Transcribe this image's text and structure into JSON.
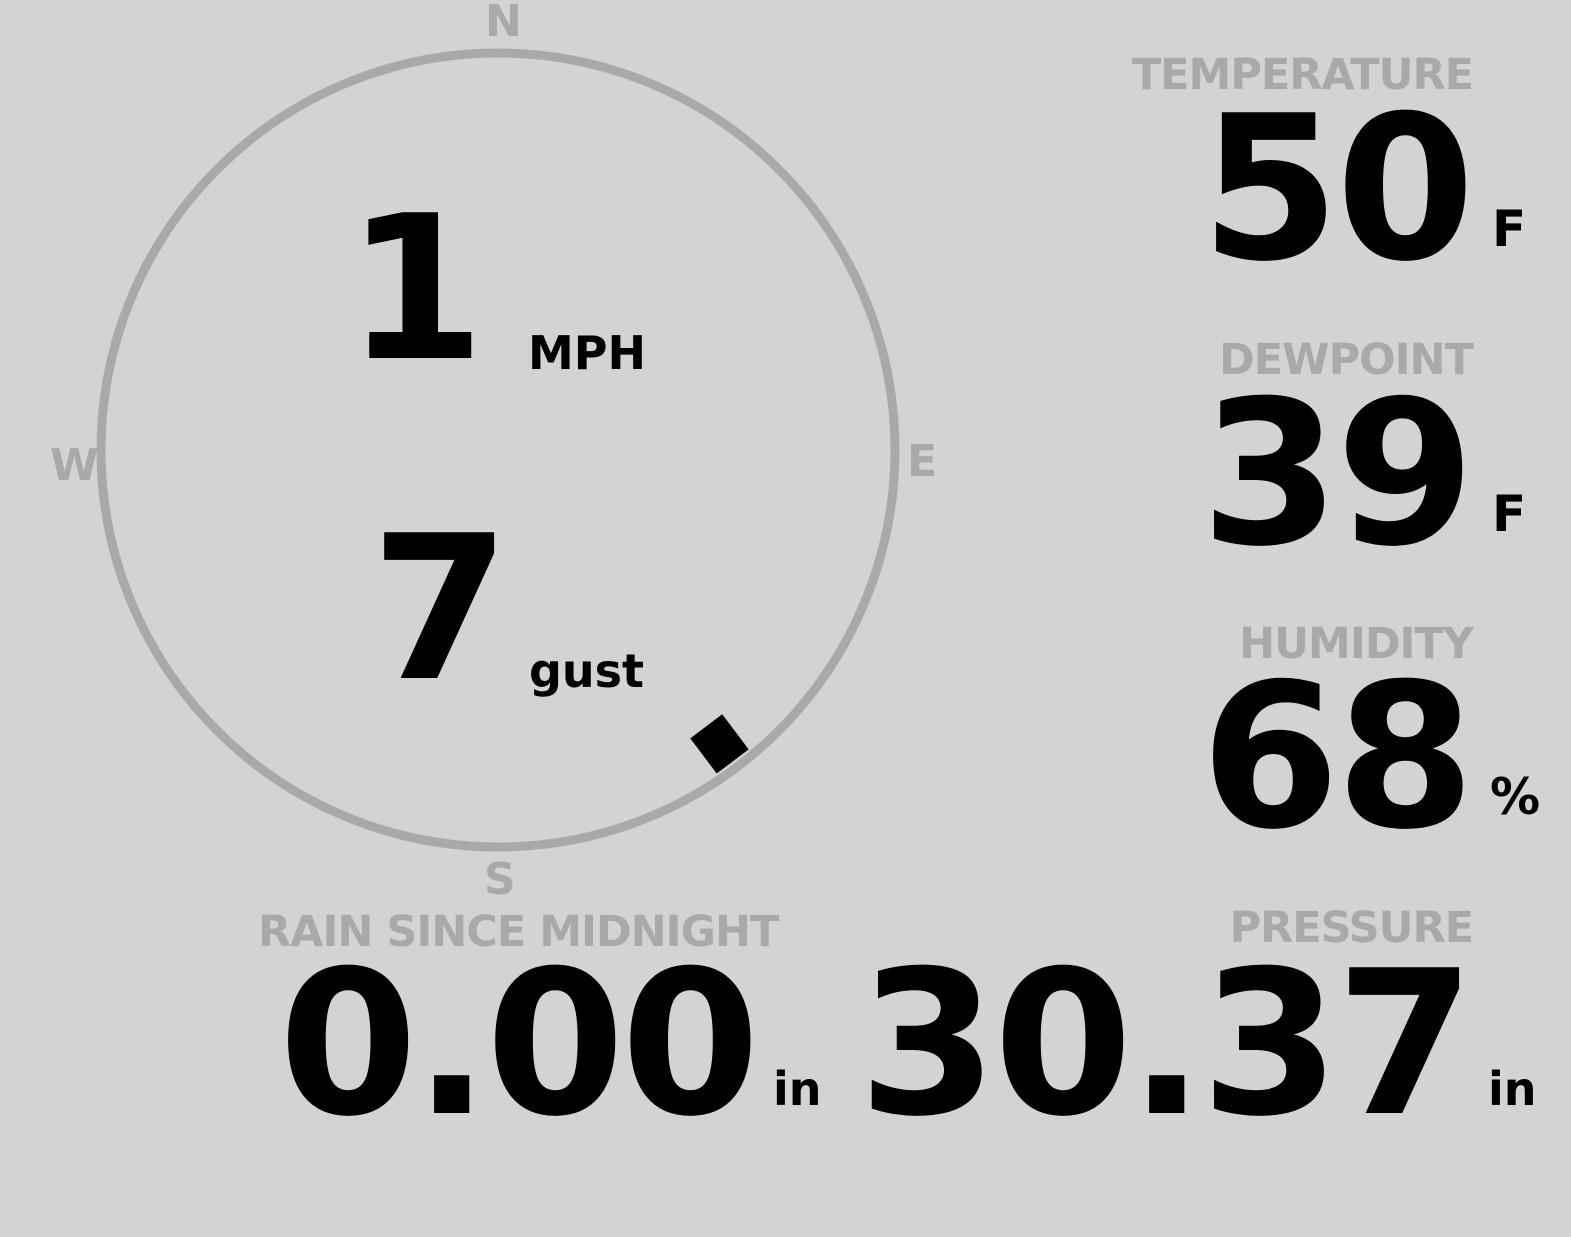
{
  "colors": {
    "background": "#d3d3d3",
    "label": "#a9a9a9",
    "value": "#000000"
  },
  "wind": {
    "speed": "1",
    "speed_unit": "MPH",
    "gust": "7",
    "gust_unit": "gust",
    "direction_degrees": 143,
    "compass": {
      "n": "N",
      "e": "E",
      "s": "S",
      "w": "W"
    }
  },
  "temperature": {
    "label": "TEMPERATURE",
    "value": "50",
    "unit": "F"
  },
  "dewpoint": {
    "label": "DEWPOINT",
    "value": "39",
    "unit": "F"
  },
  "humidity": {
    "label": "HUMIDITY",
    "value": "68",
    "unit": "%"
  },
  "rain": {
    "label": "RAIN SINCE MIDNIGHT",
    "value": "0.00",
    "unit": "in"
  },
  "pressure": {
    "label": "PRESSURE",
    "value": "30.37",
    "unit": "in"
  }
}
